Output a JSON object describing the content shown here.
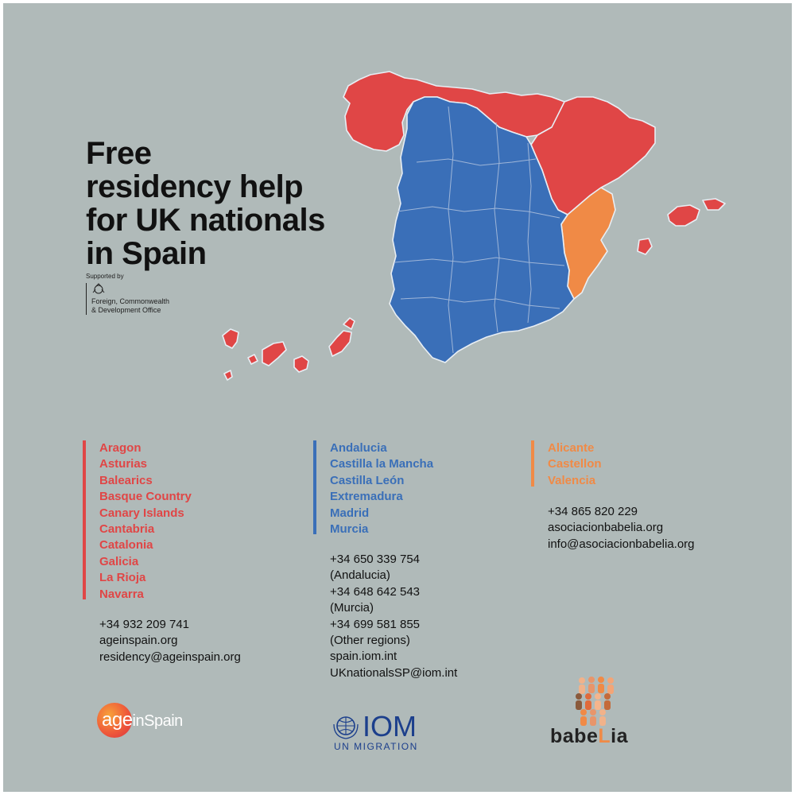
{
  "title": {
    "line1": "Free",
    "line2": "residency help",
    "line3": "for UK nationals",
    "line4": "in Spain"
  },
  "supported_by": {
    "label": "Supported by",
    "org_line1": "Foreign, Commonwealth",
    "org_line2": "& Development Office"
  },
  "colors": {
    "background": "#b0bab9",
    "red": "#e04646",
    "blue": "#3a6fb8",
    "orange": "#f08a46"
  },
  "columns": [
    {
      "color": "#e04646",
      "regions": [
        "Aragon",
        "Asturias",
        "Balearics",
        "Basque Country",
        "Canary Islands",
        "Cantabria",
        "Catalonia",
        "Galicia",
        "La Rioja",
        "Navarra"
      ],
      "contacts": [
        "+34 932 209 741",
        "ageinspain.org",
        "residency@ageinspain.org"
      ],
      "logo_text": "age",
      "logo_text_2": "inSpain"
    },
    {
      "color": "#3a6fb8",
      "regions": [
        "Andalucia",
        "Castilla la Mancha",
        "Castilla León",
        "Extremadura",
        "Madrid",
        "Murcia"
      ],
      "contacts": [
        "+34 650 339 754",
        "(Andalucia)",
        "+34 648 642 543",
        "(Murcia)",
        "+34 699 581 855",
        "(Other regions)",
        "spain.iom.int",
        "UKnationalsSP@iom.int"
      ],
      "logo_text": "IOM",
      "logo_sub": "UN MIGRATION"
    },
    {
      "color": "#f08a46",
      "regions": [
        "Alicante",
        "Castellon",
        "Valencia"
      ],
      "contacts": [
        "+34 865 820 229",
        "asociacionbabelia.org",
        "info@asociacionbabelia.org"
      ],
      "logo_text_a": "babe",
      "logo_text_b": "L",
      "logo_text_c": "ia"
    }
  ]
}
